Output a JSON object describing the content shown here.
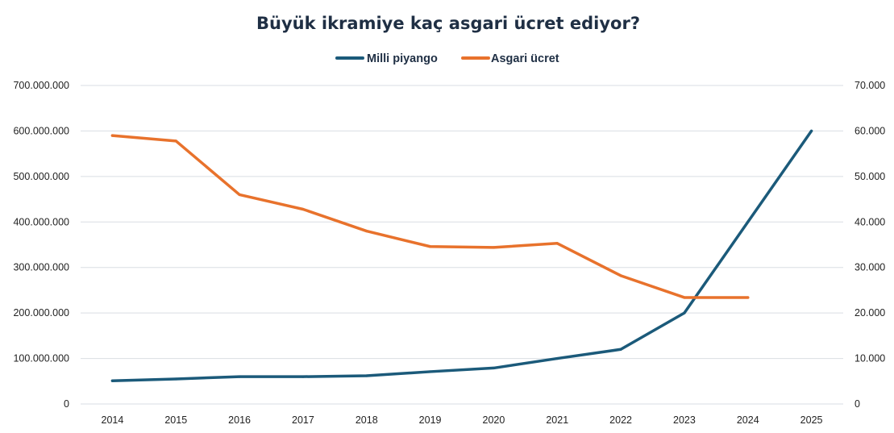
{
  "chart_data": {
    "type": "line",
    "title": "Büyük ikramiye kaç asgari ücret ediyor?",
    "categories": [
      "2014",
      "2015",
      "2016",
      "2017",
      "2018",
      "2019",
      "2020",
      "2021",
      "2022",
      "2023",
      "2024",
      "2025"
    ],
    "series": [
      {
        "name": "Milli piyango",
        "axis": "left",
        "color": "#1b5a7a",
        "values": [
          51000000,
          55000000,
          60000000,
          60000000,
          62000000,
          71000000,
          79000000,
          100000000,
          120000000,
          200000000,
          400000000,
          600000000
        ]
      },
      {
        "name": "Asgari ücret",
        "axis": "right",
        "color": "#e8722c",
        "values": [
          59000,
          57800,
          46000,
          42800,
          38000,
          34600,
          34400,
          35300,
          28200,
          23400,
          23400,
          null
        ]
      }
    ],
    "y_left": {
      "min": 0,
      "max": 700000000,
      "ticks": [
        0,
        100000000,
        200000000,
        300000000,
        400000000,
        500000000,
        600000000,
        700000000
      ],
      "tick_labels": [
        "0",
        "100.000.000",
        "200.000.000",
        "300.000.000",
        "400.000.000",
        "500.000.000",
        "600.000.000",
        "700.000.000"
      ]
    },
    "y_right": {
      "min": 0,
      "max": 70000,
      "ticks": [
        0,
        10000,
        20000,
        30000,
        40000,
        50000,
        60000,
        70000
      ],
      "tick_labels": [
        "0",
        "10.000",
        "20.000",
        "30.000",
        "40.000",
        "50.000",
        "60.000",
        "70.000"
      ]
    },
    "grid": true,
    "legend": "top-center"
  }
}
